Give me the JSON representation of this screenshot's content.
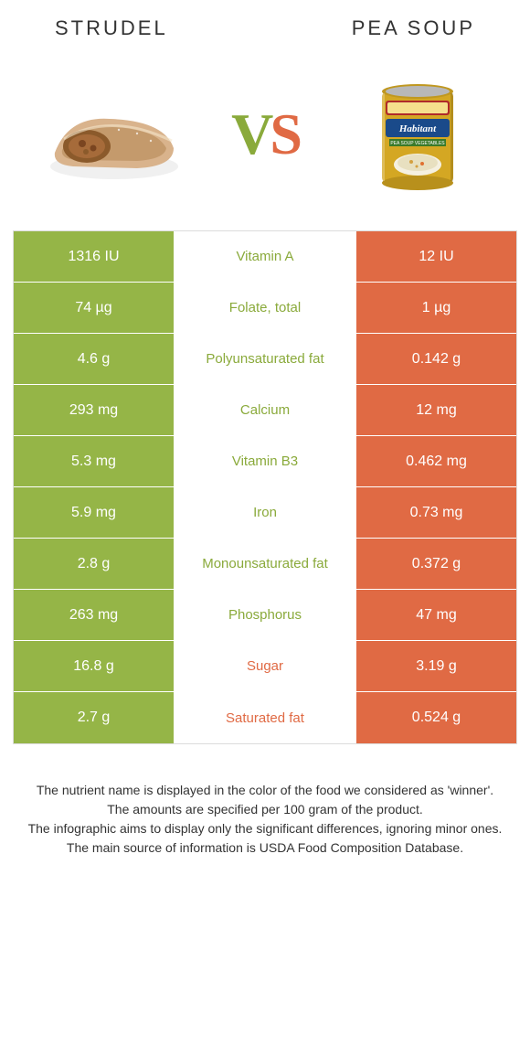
{
  "colors": {
    "left": "#95b547",
    "right": "#e06a44",
    "mid_left_text": "#8aaa3b",
    "mid_right_text": "#e06a44",
    "border": "#dcdcdc",
    "text": "#333333"
  },
  "header": {
    "left_title": "Strudel",
    "right_title": "Pea soup"
  },
  "vs": {
    "v": "V",
    "s": "S"
  },
  "rows": [
    {
      "left": "1316 IU",
      "label": "Vitamin A",
      "right": "12 IU",
      "winner": "left"
    },
    {
      "left": "74 µg",
      "label": "Folate, total",
      "right": "1 µg",
      "winner": "left"
    },
    {
      "left": "4.6 g",
      "label": "Polyunsaturated fat",
      "right": "0.142 g",
      "winner": "left"
    },
    {
      "left": "293 mg",
      "label": "Calcium",
      "right": "12 mg",
      "winner": "left"
    },
    {
      "left": "5.3 mg",
      "label": "Vitamin B3",
      "right": "0.462 mg",
      "winner": "left"
    },
    {
      "left": "5.9 mg",
      "label": "Iron",
      "right": "0.73 mg",
      "winner": "left"
    },
    {
      "left": "2.8 g",
      "label": "Monounsaturated fat",
      "right": "0.372 g",
      "winner": "left"
    },
    {
      "left": "263 mg",
      "label": "Phosphorus",
      "right": "47 mg",
      "winner": "left"
    },
    {
      "left": "16.8 g",
      "label": "Sugar",
      "right": "3.19 g",
      "winner": "right"
    },
    {
      "left": "2.7 g",
      "label": "Saturated fat",
      "right": "0.524 g",
      "winner": "right"
    }
  ],
  "footer": {
    "line1": "The nutrient name is displayed in the color of the food we considered as 'winner'.",
    "line2": "The amounts are specified per 100 gram of the product.",
    "line3": "The infographic aims to display only the significant differences, ignoring minor ones.",
    "line4": "The main source of information is USDA Food Composition Database."
  }
}
